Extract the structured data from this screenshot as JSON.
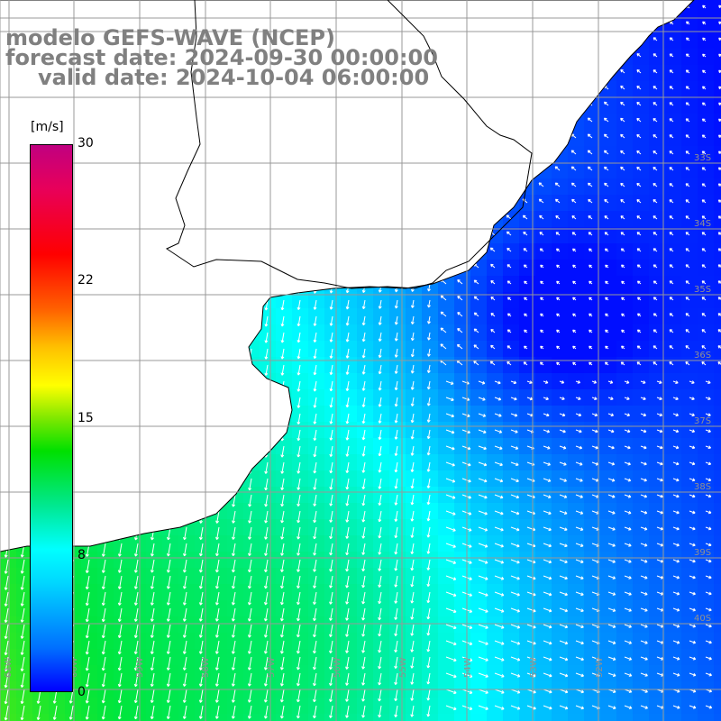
{
  "title": {
    "line1": "modelo GEFS-WAVE (NCEP)",
    "line2": "forecast date: 2024-09-30 00:00:00",
    "line3": "valid date: 2024-10-04 06:00:00"
  },
  "colorbar": {
    "unit": "[m/s]",
    "ticks": [
      {
        "label": "30",
        "value": 30
      },
      {
        "label": "22",
        "value": 22
      },
      {
        "label": "15",
        "value": 15
      },
      {
        "label": "8",
        "value": 8
      },
      {
        "label": "0",
        "value": 0
      }
    ],
    "range": [
      0,
      30
    ]
  },
  "grid": {
    "lat_labels": [
      "33S",
      "34S",
      "35S",
      "36S",
      "37S",
      "38S",
      "39S",
      "40S"
    ],
    "lon_labels": [
      "61W",
      "60W",
      "59W",
      "58W",
      "57W",
      "56W",
      "55W",
      "54W",
      "53W",
      "52W"
    ]
  },
  "colors": {
    "land": "#ffffff",
    "coast": "#000000",
    "grid": "#999999",
    "arrows": "#ffffff",
    "title": "#808080"
  }
}
